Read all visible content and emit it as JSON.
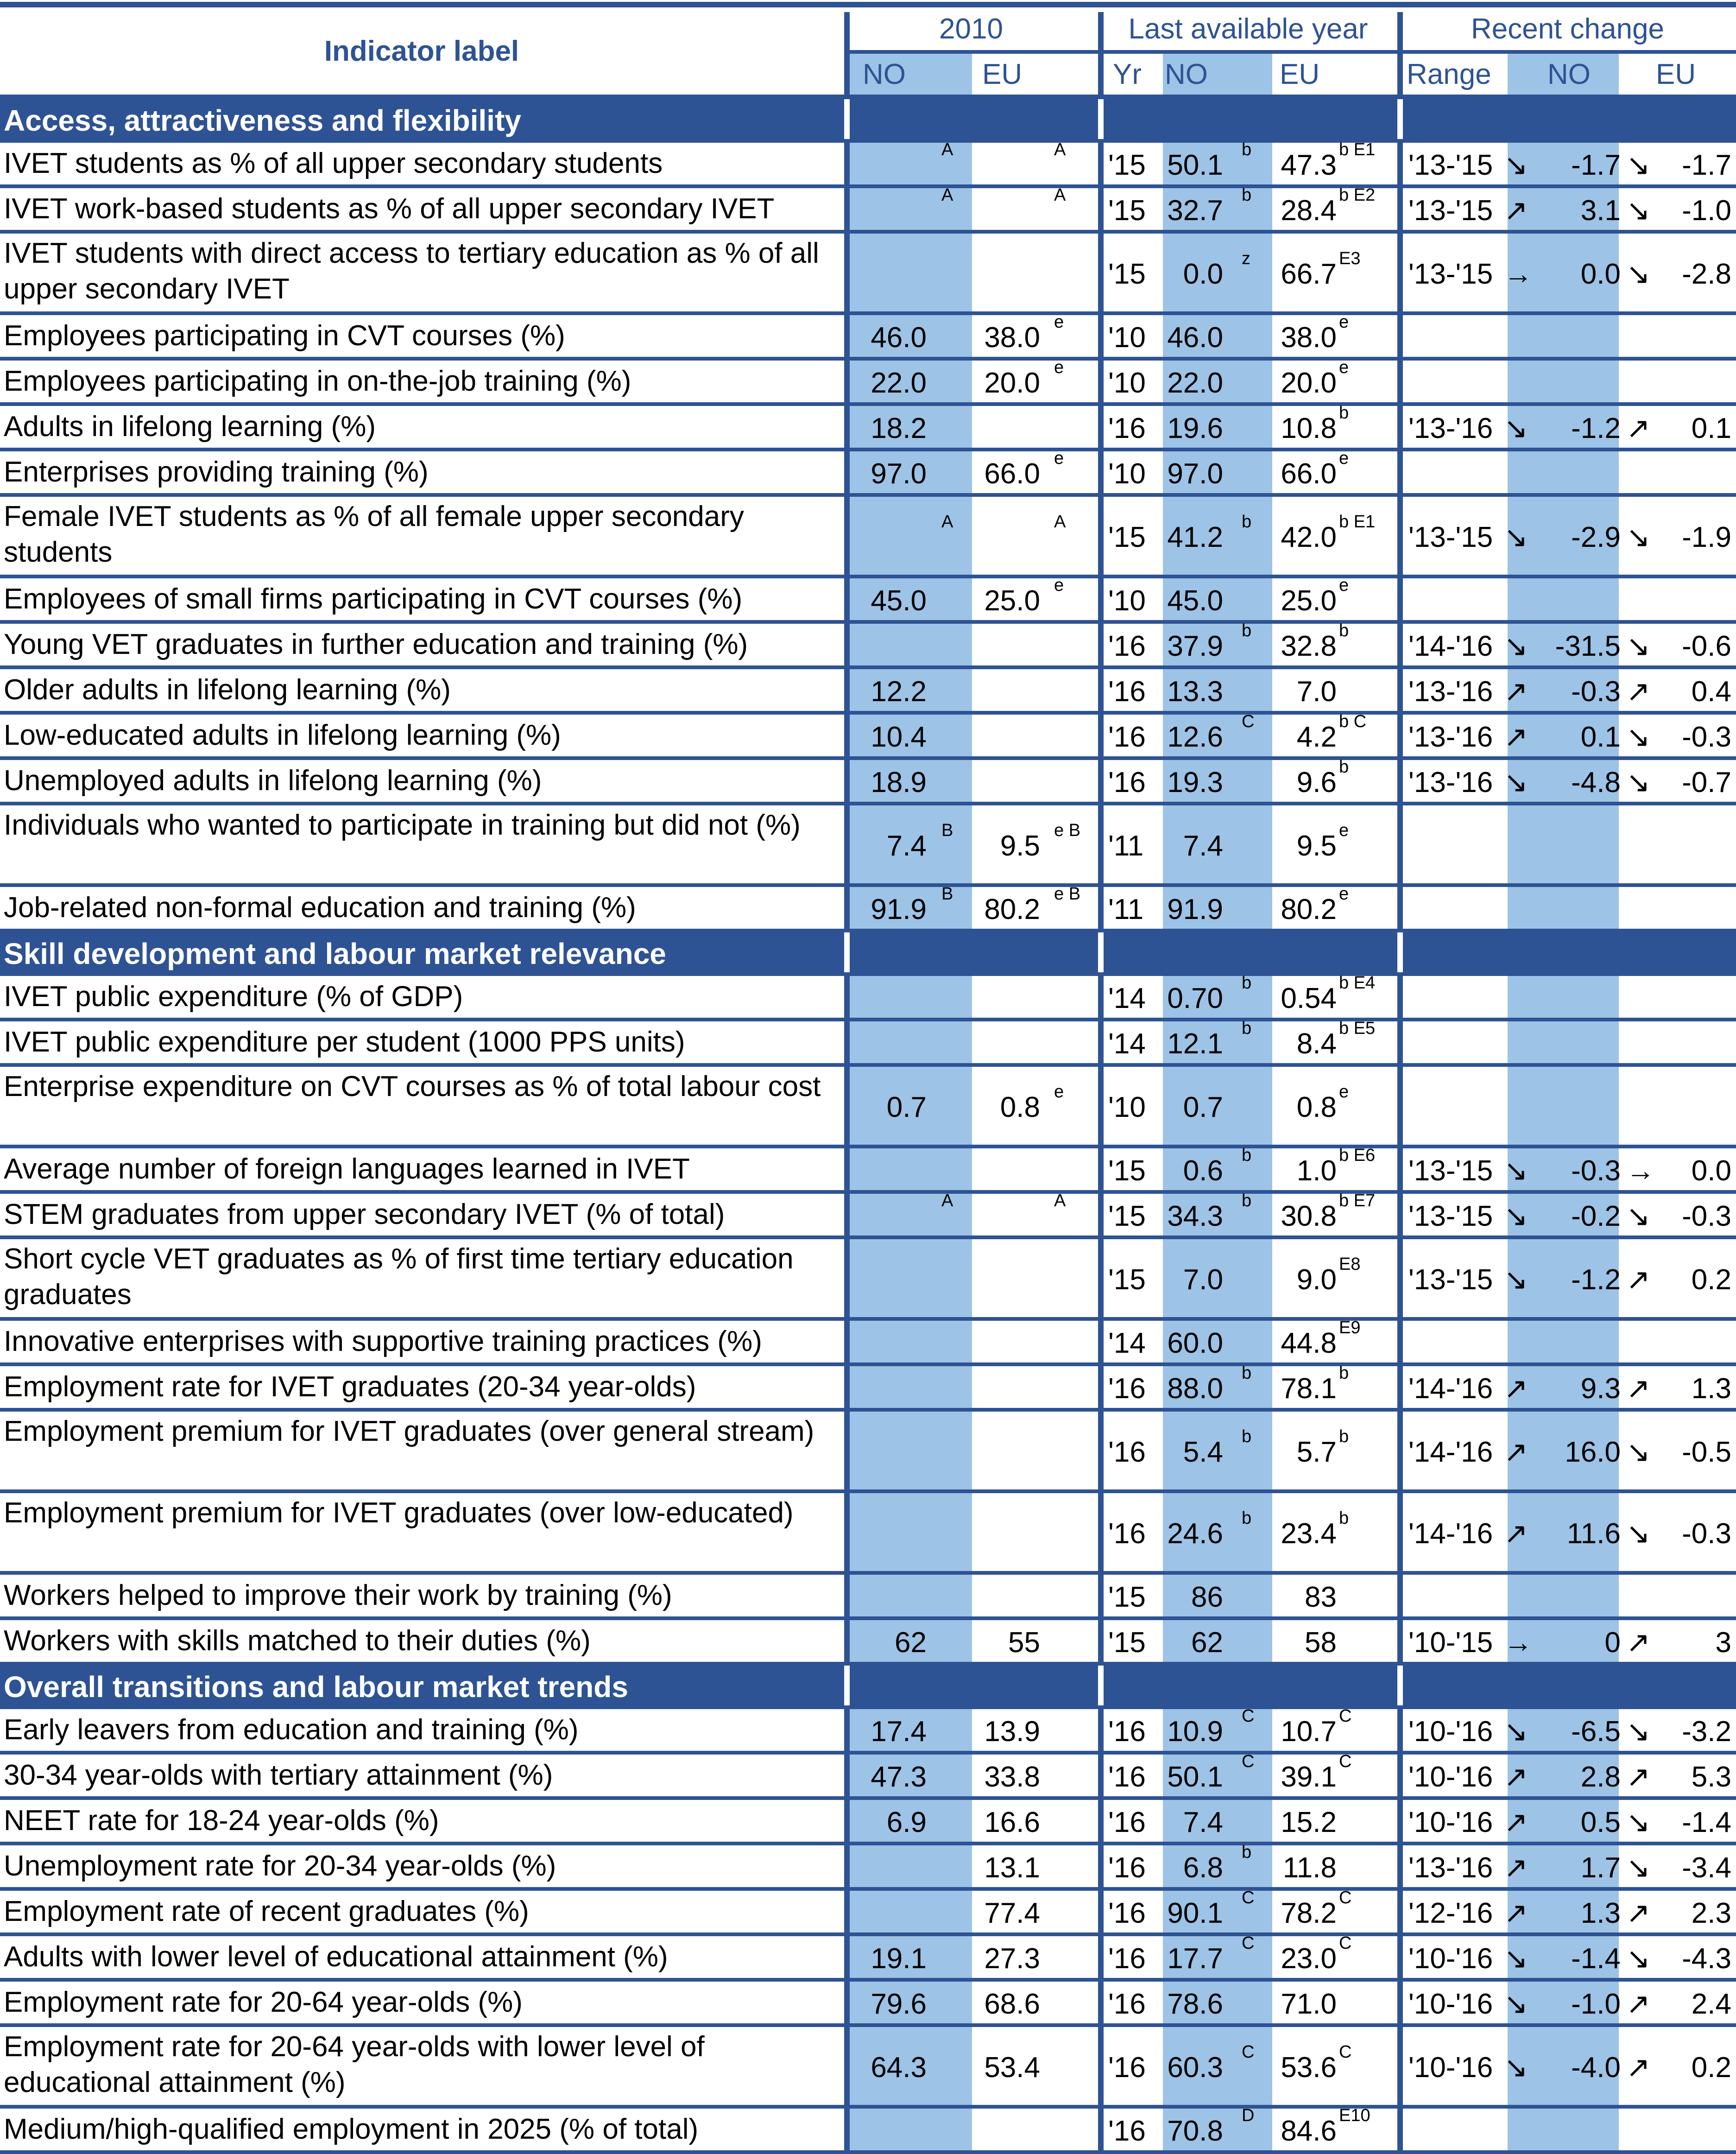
{
  "header": {
    "indicator_label": "Indicator label",
    "group_2010": "2010",
    "group_last": "Last available year",
    "group_recent": "Recent change",
    "sub_no": "NO",
    "sub_eu": "EU",
    "sub_yr": "Yr",
    "sub_range": "Range"
  },
  "sections": [
    {
      "title": "Access, attractiveness and flexibility",
      "rows": [
        {
          "label": "IVET students as % of all upper secondary students",
          "no2010": "",
          "no2010_f": "A",
          "eu2010": "",
          "eu2010_f": "A",
          "yr": "'15",
          "no_last": "50.1",
          "no_last_f": "b",
          "eu_last": "47.3",
          "eu_last_f": "b E1",
          "range": "'13-'15",
          "no_arrow": "↘",
          "no_change": "-1.7",
          "eu_arrow": "↘",
          "eu_change": "-1.7"
        },
        {
          "label": "IVET work-based students as % of all upper secondary IVET",
          "no2010": "",
          "no2010_f": "A",
          "eu2010": "",
          "eu2010_f": "A",
          "yr": "'15",
          "no_last": "32.7",
          "no_last_f": "b",
          "eu_last": "28.4",
          "eu_last_f": "b E2",
          "range": "'13-'15",
          "no_arrow": "↗",
          "no_change": "3.1",
          "eu_arrow": "↘",
          "eu_change": "-1.0"
        },
        {
          "label": "IVET students with direct access to tertiary education as % of all upper secondary IVET",
          "no2010": "",
          "no2010_f": "",
          "eu2010": "",
          "eu2010_f": "",
          "yr": "'15",
          "no_last": "0.0",
          "no_last_f": "z",
          "eu_last": "66.7",
          "eu_last_f": "E3",
          "range": "'13-'15",
          "no_arrow": "→",
          "no_change": "0.0",
          "eu_arrow": "↘",
          "eu_change": "-2.8"
        },
        {
          "label": "Employees participating in CVT courses (%)",
          "no2010": "46.0",
          "no2010_f": "",
          "eu2010": "38.0",
          "eu2010_f": "e",
          "yr": "'10",
          "no_last": "46.0",
          "no_last_f": "",
          "eu_last": "38.0",
          "eu_last_f": "e",
          "range": "",
          "no_arrow": "",
          "no_change": "",
          "eu_arrow": "",
          "eu_change": ""
        },
        {
          "label": "Employees participating in on-the-job training (%)",
          "no2010": "22.0",
          "no2010_f": "",
          "eu2010": "20.0",
          "eu2010_f": "e",
          "yr": "'10",
          "no_last": "22.0",
          "no_last_f": "",
          "eu_last": "20.0",
          "eu_last_f": "e",
          "range": "",
          "no_arrow": "",
          "no_change": "",
          "eu_arrow": "",
          "eu_change": ""
        },
        {
          "label": "Adults in lifelong learning (%)",
          "no2010": "18.2",
          "no2010_f": "",
          "eu2010": "",
          "eu2010_f": "",
          "yr": "'16",
          "no_last": "19.6",
          "no_last_f": "",
          "eu_last": "10.8",
          "eu_last_f": "b",
          "range": "'13-'16",
          "no_arrow": "↘",
          "no_change": "-1.2",
          "eu_arrow": "↗",
          "eu_change": "0.1"
        },
        {
          "label": "Enterprises providing training (%)",
          "no2010": "97.0",
          "no2010_f": "",
          "eu2010": "66.0",
          "eu2010_f": "e",
          "yr": "'10",
          "no_last": "97.0",
          "no_last_f": "",
          "eu_last": "66.0",
          "eu_last_f": "e",
          "range": "",
          "no_arrow": "",
          "no_change": "",
          "eu_arrow": "",
          "eu_change": ""
        },
        {
          "label": "Female IVET students as % of all female upper secondary students",
          "no2010": "",
          "no2010_f": "A",
          "eu2010": "",
          "eu2010_f": "A",
          "yr": "'15",
          "no_last": "41.2",
          "no_last_f": "b",
          "eu_last": "42.0",
          "eu_last_f": "b E1",
          "range": "'13-'15",
          "no_arrow": "↘",
          "no_change": "-2.9",
          "eu_arrow": "↘",
          "eu_change": "-1.9"
        },
        {
          "label": "Employees of small firms participating in CVT courses (%)",
          "no2010": "45.0",
          "no2010_f": "",
          "eu2010": "25.0",
          "eu2010_f": "e",
          "yr": "'10",
          "no_last": "45.0",
          "no_last_f": "",
          "eu_last": "25.0",
          "eu_last_f": "e",
          "range": "",
          "no_arrow": "",
          "no_change": "",
          "eu_arrow": "",
          "eu_change": ""
        },
        {
          "label": "Young VET graduates in further education and training (%)",
          "no2010": "",
          "no2010_f": "",
          "eu2010": "",
          "eu2010_f": "",
          "yr": "'16",
          "no_last": "37.9",
          "no_last_f": "b",
          "eu_last": "32.8",
          "eu_last_f": "b",
          "range": "'14-'16",
          "no_arrow": "↘",
          "no_change": "-31.5",
          "eu_arrow": "↘",
          "eu_change": "-0.6"
        },
        {
          "label": "Older adults in lifelong learning (%)",
          "no2010": "12.2",
          "no2010_f": "",
          "eu2010": "",
          "eu2010_f": "",
          "yr": "'16",
          "no_last": "13.3",
          "no_last_f": "",
          "eu_last": "7.0",
          "eu_last_f": "",
          "range": "'13-'16",
          "no_arrow": "↗",
          "no_change": "-0.3",
          "eu_arrow": "↗",
          "eu_change": "0.4"
        },
        {
          "label": "Low-educated adults in lifelong learning (%)",
          "no2010": "10.4",
          "no2010_f": "",
          "eu2010": "",
          "eu2010_f": "",
          "yr": "'16",
          "no_last": "12.6",
          "no_last_f": "C",
          "eu_last": "4.2",
          "eu_last_f": "b C",
          "range": "'13-'16",
          "no_arrow": "↗",
          "no_change": "0.1",
          "eu_arrow": "↘",
          "eu_change": "-0.3"
        },
        {
          "label": "Unemployed adults in lifelong learning (%)",
          "no2010": "18.9",
          "no2010_f": "",
          "eu2010": "",
          "eu2010_f": "",
          "yr": "'16",
          "no_last": "19.3",
          "no_last_f": "",
          "eu_last": "9.6",
          "eu_last_f": "b",
          "range": "'13-'16",
          "no_arrow": "↘",
          "no_change": "-4.8",
          "eu_arrow": "↘",
          "eu_change": "-0.7"
        },
        {
          "label": "Individuals who wanted to participate in training but did not (%)",
          "no2010": "7.4",
          "no2010_f": "B",
          "eu2010": "9.5",
          "eu2010_f": "e B",
          "yr": "'11",
          "no_last": "7.4",
          "no_last_f": "",
          "eu_last": "9.5",
          "eu_last_f": "e",
          "range": "",
          "no_arrow": "",
          "no_change": "",
          "eu_arrow": "",
          "eu_change": ""
        },
        {
          "label": "Job-related non-formal education and training (%)",
          "no2010": "91.9",
          "no2010_f": "B",
          "eu2010": "80.2",
          "eu2010_f": "e B",
          "yr": "'11",
          "no_last": "91.9",
          "no_last_f": "",
          "eu_last": "80.2",
          "eu_last_f": "e",
          "range": "",
          "no_arrow": "",
          "no_change": "",
          "eu_arrow": "",
          "eu_change": ""
        }
      ]
    },
    {
      "title": "Skill development and labour market relevance",
      "rows": [
        {
          "label": "IVET public expenditure (% of GDP)",
          "no2010": "",
          "no2010_f": "",
          "eu2010": "",
          "eu2010_f": "",
          "yr": "'14",
          "no_last": "0.70",
          "no_last_f": "b",
          "eu_last": "0.54",
          "eu_last_f": "b E4",
          "range": "",
          "no_arrow": "",
          "no_change": "",
          "eu_arrow": "",
          "eu_change": ""
        },
        {
          "label": "IVET public expenditure per student (1000 PPS units)",
          "no2010": "",
          "no2010_f": "",
          "eu2010": "",
          "eu2010_f": "",
          "yr": "'14",
          "no_last": "12.1",
          "no_last_f": "b",
          "eu_last": "8.4",
          "eu_last_f": "b E5",
          "range": "",
          "no_arrow": "",
          "no_change": "",
          "eu_arrow": "",
          "eu_change": ""
        },
        {
          "label": "Enterprise expenditure on CVT courses as % of total labour cost",
          "no2010": "0.7",
          "no2010_f": "",
          "eu2010": "0.8",
          "eu2010_f": "e",
          "yr": "'10",
          "no_last": "0.7",
          "no_last_f": "",
          "eu_last": "0.8",
          "eu_last_f": "e",
          "range": "",
          "no_arrow": "",
          "no_change": "",
          "eu_arrow": "",
          "eu_change": ""
        },
        {
          "label": "Average number of foreign languages learned in IVET",
          "no2010": "",
          "no2010_f": "",
          "eu2010": "",
          "eu2010_f": "",
          "yr": "'15",
          "no_last": "0.6",
          "no_last_f": "b",
          "eu_last": "1.0",
          "eu_last_f": "b E6",
          "range": "'13-'15",
          "no_arrow": "↘",
          "no_change": "-0.3",
          "eu_arrow": "→",
          "eu_change": "0.0"
        },
        {
          "label": "STEM graduates from upper secondary IVET (% of total)",
          "no2010": "",
          "no2010_f": "A",
          "eu2010": "",
          "eu2010_f": "A",
          "yr": "'15",
          "no_last": "34.3",
          "no_last_f": "b",
          "eu_last": "30.8",
          "eu_last_f": "b E7",
          "range": "'13-'15",
          "no_arrow": "↘",
          "no_change": "-0.2",
          "eu_arrow": "↘",
          "eu_change": "-0.3"
        },
        {
          "label": "Short cycle VET graduates as % of first time tertiary education graduates",
          "no2010": "",
          "no2010_f": "",
          "eu2010": "",
          "eu2010_f": "",
          "yr": "'15",
          "no_last": "7.0",
          "no_last_f": "",
          "eu_last": "9.0",
          "eu_last_f": "E8",
          "range": "'13-'15",
          "no_arrow": "↘",
          "no_change": "-1.2",
          "eu_arrow": "↗",
          "eu_change": "0.2"
        },
        {
          "label": "Innovative enterprises with supportive training practices (%)",
          "no2010": "",
          "no2010_f": "",
          "eu2010": "",
          "eu2010_f": "",
          "yr": "'14",
          "no_last": "60.0",
          "no_last_f": "",
          "eu_last": "44.8",
          "eu_last_f": "E9",
          "range": "",
          "no_arrow": "",
          "no_change": "",
          "eu_arrow": "",
          "eu_change": ""
        },
        {
          "label": "Employment rate for IVET graduates (20-34 year-olds)",
          "no2010": "",
          "no2010_f": "",
          "eu2010": "",
          "eu2010_f": "",
          "yr": "'16",
          "no_last": "88.0",
          "no_last_f": "b",
          "eu_last": "78.1",
          "eu_last_f": "b",
          "range": "'14-'16",
          "no_arrow": "↗",
          "no_change": "9.3",
          "eu_arrow": "↗",
          "eu_change": "1.3"
        },
        {
          "label": "Employment premium for IVET graduates (over general stream)",
          "no2010": "",
          "no2010_f": "",
          "eu2010": "",
          "eu2010_f": "",
          "yr": "'16",
          "no_last": "5.4",
          "no_last_f": "b",
          "eu_last": "5.7",
          "eu_last_f": "b",
          "range": "'14-'16",
          "no_arrow": "↗",
          "no_change": "16.0",
          "eu_arrow": "↘",
          "eu_change": "-0.5"
        },
        {
          "label": "Employment premium for IVET graduates (over low-educated)",
          "no2010": "",
          "no2010_f": "",
          "eu2010": "",
          "eu2010_f": "",
          "yr": "'16",
          "no_last": "24.6",
          "no_last_f": "b",
          "eu_last": "23.4",
          "eu_last_f": "b",
          "range": "'14-'16",
          "no_arrow": "↗",
          "no_change": "11.6",
          "eu_arrow": "↘",
          "eu_change": "-0.3"
        },
        {
          "label": "Workers helped to improve their work by training (%)",
          "no2010": "",
          "no2010_f": "",
          "eu2010": "",
          "eu2010_f": "",
          "yr": "'15",
          "no_last": "86",
          "no_last_f": "",
          "eu_last": "83",
          "eu_last_f": "",
          "range": "",
          "no_arrow": "",
          "no_change": "",
          "eu_arrow": "",
          "eu_change": ""
        },
        {
          "label": "Workers with skills matched to their duties (%)",
          "no2010": "62",
          "no2010_f": "",
          "eu2010": "55",
          "eu2010_f": "",
          "yr": "'15",
          "no_last": "62",
          "no_last_f": "",
          "eu_last": "58",
          "eu_last_f": "",
          "range": "'10-'15",
          "no_arrow": "→",
          "no_change": "0",
          "eu_arrow": "↗",
          "eu_change": "3"
        }
      ]
    },
    {
      "title": "Overall transitions and labour market trends",
      "rows": [
        {
          "label": "Early leavers from education and training (%)",
          "no2010": "17.4",
          "no2010_f": "",
          "eu2010": "13.9",
          "eu2010_f": "",
          "yr": "'16",
          "no_last": "10.9",
          "no_last_f": "C",
          "eu_last": "10.7",
          "eu_last_f": "C",
          "range": "'10-'16",
          "no_arrow": "↘",
          "no_change": "-6.5",
          "eu_arrow": "↘",
          "eu_change": "-3.2"
        },
        {
          "label": "30-34 year-olds with tertiary attainment (%)",
          "no2010": "47.3",
          "no2010_f": "",
          "eu2010": "33.8",
          "eu2010_f": "",
          "yr": "'16",
          "no_last": "50.1",
          "no_last_f": "C",
          "eu_last": "39.1",
          "eu_last_f": "C",
          "range": "'10-'16",
          "no_arrow": "↗",
          "no_change": "2.8",
          "eu_arrow": "↗",
          "eu_change": "5.3"
        },
        {
          "label": "NEET rate for 18-24 year-olds (%)",
          "no2010": "6.9",
          "no2010_f": "",
          "eu2010": "16.6",
          "eu2010_f": "",
          "yr": "'16",
          "no_last": "7.4",
          "no_last_f": "",
          "eu_last": "15.2",
          "eu_last_f": "",
          "range": "'10-'16",
          "no_arrow": "↗",
          "no_change": "0.5",
          "eu_arrow": "↘",
          "eu_change": "-1.4"
        },
        {
          "label": "Unemployment rate for 20-34 year-olds (%)",
          "no2010": "",
          "no2010_f": "",
          "eu2010": "13.1",
          "eu2010_f": "",
          "yr": "'16",
          "no_last": "6.8",
          "no_last_f": "b",
          "eu_last": "11.8",
          "eu_last_f": "",
          "range": "'13-'16",
          "no_arrow": "↗",
          "no_change": "1.7",
          "eu_arrow": "↘",
          "eu_change": "-3.4"
        },
        {
          "label": "Employment rate of recent graduates (%)",
          "no2010": "",
          "no2010_f": "",
          "eu2010": "77.4",
          "eu2010_f": "",
          "yr": "'16",
          "no_last": "90.1",
          "no_last_f": "C",
          "eu_last": "78.2",
          "eu_last_f": "C",
          "range": "'12-'16",
          "no_arrow": "↗",
          "no_change": "1.3",
          "eu_arrow": "↗",
          "eu_change": "2.3"
        },
        {
          "label": "Adults with lower level of educational attainment (%)",
          "no2010": "19.1",
          "no2010_f": "",
          "eu2010": "27.3",
          "eu2010_f": "",
          "yr": "'16",
          "no_last": "17.7",
          "no_last_f": "C",
          "eu_last": "23.0",
          "eu_last_f": "C",
          "range": "'10-'16",
          "no_arrow": "↘",
          "no_change": "-1.4",
          "eu_arrow": "↘",
          "eu_change": "-4.3"
        },
        {
          "label": "Employment rate for 20-64 year-olds (%)",
          "no2010": "79.6",
          "no2010_f": "",
          "eu2010": "68.6",
          "eu2010_f": "",
          "yr": "'16",
          "no_last": "78.6",
          "no_last_f": "",
          "eu_last": "71.0",
          "eu_last_f": "",
          "range": "'10-'16",
          "no_arrow": "↘",
          "no_change": "-1.0",
          "eu_arrow": "↗",
          "eu_change": "2.4"
        },
        {
          "label": "Employment rate for 20-64 year-olds with lower level of educational attainment (%)",
          "no2010": "64.3",
          "no2010_f": "",
          "eu2010": "53.4",
          "eu2010_f": "",
          "yr": "'16",
          "no_last": "60.3",
          "no_last_f": "C",
          "eu_last": "53.6",
          "eu_last_f": "C",
          "range": "'10-'16",
          "no_arrow": "↘",
          "no_change": "-4.0",
          "eu_arrow": "↗",
          "eu_change": "0.2"
        },
        {
          "label": "Medium/high-qualified employment in 2025 (% of total)",
          "no2010": "",
          "no2010_f": "",
          "eu2010": "",
          "eu2010_f": "",
          "yr": "'16",
          "no_last": "70.8",
          "no_last_f": "D",
          "eu_last": "84.6",
          "eu_last_f": "E10",
          "range": "",
          "no_arrow": "",
          "no_change": "",
          "eu_arrow": "",
          "eu_change": ""
        }
      ]
    }
  ]
}
